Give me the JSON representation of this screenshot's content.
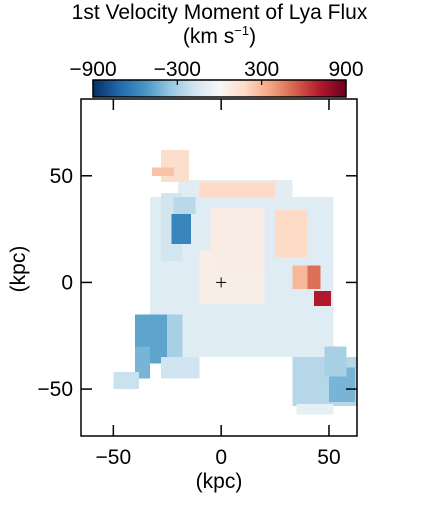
{
  "chart_data": {
    "type": "heatmap",
    "title": "1st Velocity Moment of Lya Flux",
    "colorbar": {
      "label_prefix": "(km s",
      "label_exponent": "−1",
      "label_suffix": ")",
      "range": [
        -900,
        900
      ],
      "ticks": [
        -900,
        -300,
        300,
        900
      ],
      "tick_labels": [
        "−900",
        "−300",
        "300",
        "900"
      ],
      "colormap": "RdBu_r",
      "placement": "top"
    },
    "xlabel": "(kpc)",
    "ylabel": "(kpc)",
    "xlim": [
      -65,
      63
    ],
    "ylim": [
      -72,
      86
    ],
    "x_ticks": [
      -50,
      0,
      50
    ],
    "x_tick_labels": [
      "−50",
      "0",
      "50"
    ],
    "y_ticks": [
      -50,
      0,
      50
    ],
    "y_tick_labels": [
      "−50",
      "0",
      "50"
    ],
    "center_marker": [
      0,
      0
    ],
    "grid": false,
    "regions": [
      {
        "x0": -33,
        "x1": 52,
        "y0": -35,
        "y1": 40,
        "value": -110
      },
      {
        "x0": -20,
        "x1": 33,
        "y0": 40,
        "y1": 48,
        "value": -100
      },
      {
        "x0": -10,
        "x1": 20,
        "y0": -10,
        "y1": 15,
        "value": 60
      },
      {
        "x0": -33,
        "x1": -18,
        "y0": -35,
        "y1": -15,
        "value": -300
      },
      {
        "x0": -40,
        "x1": -25,
        "y0": -38,
        "y1": -15,
        "value": -480
      },
      {
        "x0": -40,
        "x1": -33,
        "y0": -45,
        "y1": -30,
        "value": -420
      },
      {
        "x0": -28,
        "x1": -10,
        "y0": -45,
        "y1": -35,
        "value": -180
      },
      {
        "x0": -28,
        "x1": -18,
        "y0": 10,
        "y1": 42,
        "value": -170
      },
      {
        "x0": -23,
        "x1": -14,
        "y0": 18,
        "y1": 32,
        "value": -600
      },
      {
        "x0": -22,
        "x1": -12,
        "y0": 32,
        "y1": 40,
        "value": -250
      },
      {
        "x0": 33,
        "x1": 63,
        "y0": -58,
        "y1": -35,
        "value": -260
      },
      {
        "x0": 50,
        "x1": 62,
        "y0": -56,
        "y1": -40,
        "value": -420
      },
      {
        "x0": 48,
        "x1": 58,
        "y0": -44,
        "y1": -30,
        "value": -300
      },
      {
        "x0": 35,
        "x1": 52,
        "y0": -62,
        "y1": -57,
        "value": -80
      },
      {
        "x0": -50,
        "x1": -38,
        "y0": -50,
        "y1": -42,
        "value": -200
      },
      {
        "x0": -28,
        "x1": -15,
        "y0": 47,
        "y1": 62,
        "value": 160
      },
      {
        "x0": -32,
        "x1": -22,
        "y0": 50,
        "y1": 54,
        "value": 260
      },
      {
        "x0": -10,
        "x1": 25,
        "y0": 40,
        "y1": 47,
        "value": 180
      },
      {
        "x0": -5,
        "x1": 20,
        "y0": 5,
        "y1": 35,
        "value": 70
      },
      {
        "x0": 25,
        "x1": 40,
        "y0": 12,
        "y1": 34,
        "value": 180
      },
      {
        "x0": 33,
        "x1": 42,
        "y0": -3,
        "y1": 8,
        "value": 300
      },
      {
        "x0": 40,
        "x1": 46,
        "y0": -3,
        "y1": 8,
        "value": 500
      },
      {
        "x0": 43,
        "x1": 51,
        "y0": -11,
        "y1": -4,
        "value": 720
      }
    ]
  }
}
